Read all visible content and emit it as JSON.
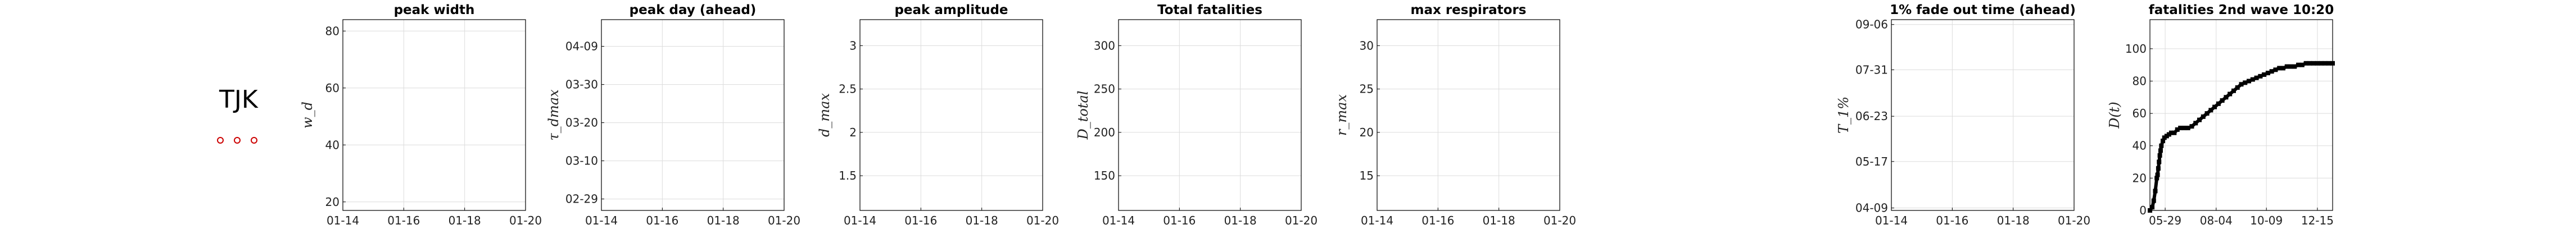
{
  "country": {
    "code": "TJK"
  },
  "colors": {
    "axis": "#000000",
    "grid": "#dcdcdc",
    "marker": "#000000",
    "legend_marker": "#cc0000"
  },
  "chart_data": [
    {
      "type": "line",
      "title": "peak width",
      "ylabel": "w_d",
      "ylim": [
        17,
        84
      ],
      "xticks": [
        "01-14",
        "01-16",
        "01-18",
        "01-20"
      ],
      "yticks": [
        "20",
        "40",
        "60",
        "80"
      ],
      "ytick_values": [
        20,
        40,
        60,
        80
      ],
      "series": []
    },
    {
      "type": "line",
      "title": "peak day (ahead)",
      "ylabel": "τ_dmax",
      "ylim": [
        0,
        50
      ],
      "xticks": [
        "01-14",
        "01-16",
        "01-18",
        "01-20"
      ],
      "yticks": [
        "02-29",
        "03-10",
        "03-20",
        "03-30",
        "04-09"
      ],
      "ytick_values": [
        3,
        13,
        23,
        33,
        43
      ],
      "series": []
    },
    {
      "type": "line",
      "title": "peak amplitude",
      "ylabel": "d_max",
      "ylim": [
        1.1,
        3.3
      ],
      "xticks": [
        "01-14",
        "01-16",
        "01-18",
        "01-20"
      ],
      "yticks": [
        "1.5",
        "2",
        "2.5",
        "3"
      ],
      "ytick_values": [
        1.5,
        2,
        2.5,
        3
      ],
      "series": []
    },
    {
      "type": "line",
      "title": "Total fatalities",
      "ylabel": "D_total",
      "ylim": [
        110,
        330
      ],
      "xticks": [
        "01-14",
        "01-16",
        "01-18",
        "01-20"
      ],
      "yticks": [
        "150",
        "200",
        "250",
        "300"
      ],
      "ytick_values": [
        150,
        200,
        250,
        300
      ],
      "series": []
    },
    {
      "type": "line",
      "title": "max respirators",
      "ylabel": "r_max",
      "ylim": [
        11,
        33
      ],
      "xticks": [
        "01-14",
        "01-16",
        "01-18",
        "01-20"
      ],
      "yticks": [
        "15",
        "20",
        "25",
        "30"
      ],
      "ytick_values": [
        15,
        20,
        25,
        30
      ],
      "series": []
    },
    {
      "type": "line",
      "title": "1% fade out time (ahead)",
      "ylabel": "T_1%",
      "ylim": [
        0,
        156
      ],
      "xticks": [
        "01-14",
        "01-16",
        "01-18",
        "01-20"
      ],
      "yticks": [
        "04-09",
        "05-17",
        "06-23",
        "07-31",
        "09-06"
      ],
      "ytick_values": [
        2,
        40,
        77,
        115,
        152
      ],
      "series": []
    },
    {
      "type": "scatter",
      "title": "fatalities 2nd wave 10:20",
      "ylabel": "D(t)",
      "ylim": [
        0,
        118
      ],
      "xlim": [
        0,
        240
      ],
      "xticks": [
        "05-29",
        "08-04",
        "10-09",
        "12-15"
      ],
      "xtick_values": [
        20,
        87,
        153,
        220
      ],
      "yticks": [
        "0",
        "20",
        "40",
        "60",
        "80",
        "100"
      ],
      "ytick_values": [
        0,
        20,
        40,
        60,
        80,
        100
      ],
      "series": [
        {
          "x": [
            0,
            3,
            5,
            7,
            9,
            10,
            11,
            12,
            13,
            14,
            15,
            17,
            19,
            22,
            25,
            28,
            32,
            36,
            40,
            45,
            50,
            55,
            60,
            65,
            70,
            75,
            80,
            85,
            90,
            95,
            100,
            105,
            110,
            115,
            120,
            125,
            130,
            135,
            140,
            145,
            150,
            155,
            160,
            165,
            170,
            175,
            180,
            185,
            190,
            195,
            200,
            205,
            210,
            215,
            220,
            225,
            230,
            235,
            240
          ],
          "y": [
            0,
            2,
            6,
            12,
            20,
            22,
            26,
            30,
            34,
            37,
            40,
            43,
            45,
            46,
            47,
            48,
            48,
            50,
            51,
            51,
            51,
            52,
            54,
            56,
            58,
            60,
            62,
            64,
            66,
            68,
            70,
            72,
            74,
            76,
            78,
            79,
            80,
            81,
            82,
            83,
            84,
            85,
            86,
            87,
            88,
            88,
            89,
            89,
            89,
            90,
            90,
            91,
            91,
            91,
            91,
            91,
            91,
            91,
            91
          ]
        }
      ]
    }
  ]
}
